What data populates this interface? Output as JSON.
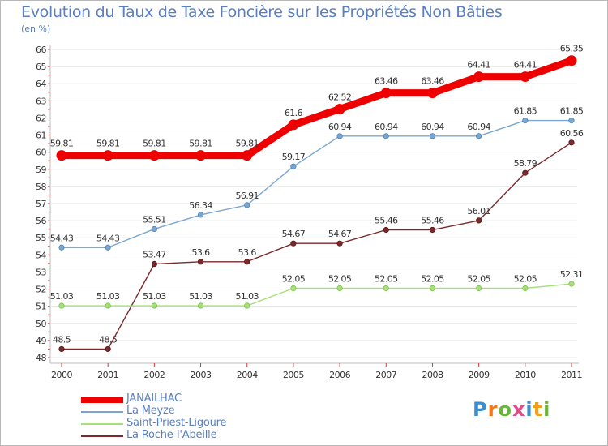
{
  "title": "Evolution du Taux de Taxe Foncière sur les Propriétés Non Bâties",
  "unit_label": "(en %)",
  "logo": {
    "letters": [
      "P",
      "r",
      "o",
      "x",
      "i",
      "t",
      "i"
    ],
    "colors": [
      "#3a8ed4",
      "#f07a1a",
      "#6ab43a",
      "#e04a8a",
      "#3a8ed4",
      "#f0a11a",
      "#6ab43a"
    ]
  },
  "chart_data": {
    "type": "line",
    "title": "Evolution du Taux de Taxe Foncière sur les Propriétés Non Bâties",
    "ylabel": "(en %)",
    "xlabel": "",
    "x": [
      "2000",
      "2001",
      "2002",
      "2003",
      "2004",
      "2005",
      "2006",
      "2007",
      "2008",
      "2009",
      "2010",
      "2011"
    ],
    "ylim": [
      48,
      66
    ],
    "yticks": [
      "48",
      "49",
      "50",
      "51",
      "52",
      "53",
      "54",
      "55",
      "56",
      "57",
      "58",
      "59",
      "60",
      "61",
      "62",
      "63",
      "64",
      "65",
      "66"
    ],
    "grid": "horizontal",
    "legend": "bottom-left",
    "series": [
      {
        "name": "JANAILHAC",
        "color": "#ee0000",
        "values": [
          59.81,
          59.81,
          59.81,
          59.81,
          59.81,
          61.6,
          62.52,
          63.46,
          63.46,
          64.41,
          64.41,
          65.35
        ],
        "labels": [
          "59.81",
          "59.81",
          "59.81",
          "59.81",
          "59.81",
          "61.6",
          "62.52",
          "63.46",
          "63.46",
          "64.41",
          "64.41",
          "65.35"
        ]
      },
      {
        "name": "La Meyze",
        "color": "#7aa7d1",
        "values": [
          54.43,
          54.43,
          55.51,
          56.34,
          56.91,
          59.17,
          60.94,
          60.94,
          60.94,
          60.94,
          61.85,
          61.85
        ],
        "labels": [
          "54.43",
          "54.43",
          "55.51",
          "56.34",
          "56.91",
          "59.17",
          "60.94",
          "60.94",
          "60.94",
          "60.94",
          "61.85",
          "61.85"
        ]
      },
      {
        "name": "Saint-Priest-Ligoure",
        "color": "#a6e07a",
        "values": [
          51.03,
          51.03,
          51.03,
          51.03,
          51.03,
          52.05,
          52.05,
          52.05,
          52.05,
          52.05,
          52.05,
          52.31
        ],
        "labels": [
          "51.03",
          "51.03",
          "51.03",
          "51.03",
          "51.03",
          "52.05",
          "52.05",
          "52.05",
          "52.05",
          "52.05",
          "52.05",
          "52.31"
        ]
      },
      {
        "name": "La Roche-l'Abeille",
        "color": "#7a2a2a",
        "values": [
          48.5,
          48.5,
          53.47,
          53.6,
          53.6,
          54.67,
          54.67,
          55.46,
          55.46,
          56.01,
          58.79,
          60.56
        ],
        "labels": [
          "48.5",
          "48.5",
          "53.47",
          "53.6",
          "53.6",
          "54.67",
          "54.67",
          "55.46",
          "55.46",
          "56.01",
          "58.79",
          "60.56"
        ]
      }
    ]
  }
}
